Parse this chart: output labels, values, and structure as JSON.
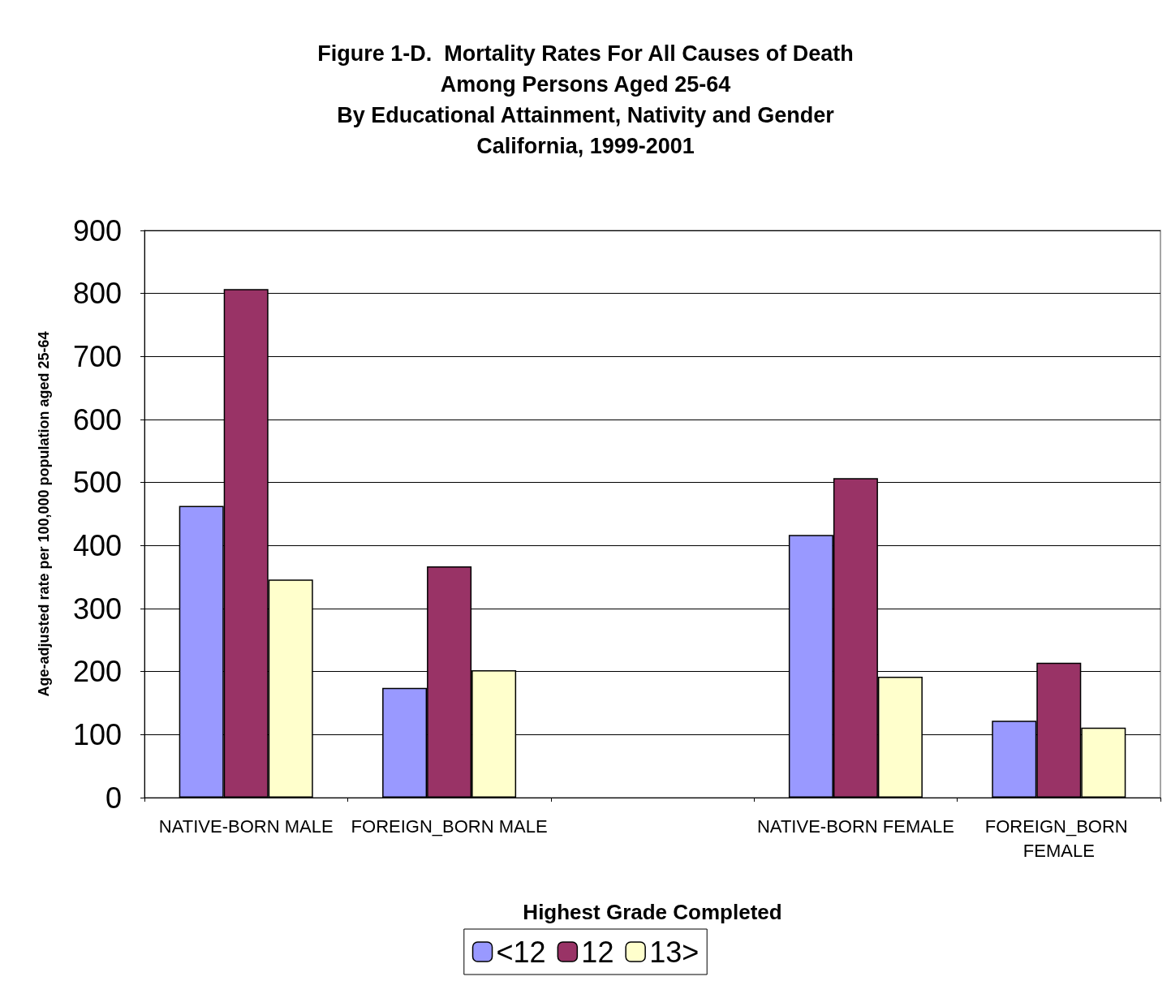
{
  "chart_data": {
    "type": "bar",
    "title": "Figure 1-D.  Mortality Rates For All Causes of Death\nAmong Persons Aged 25-64\nBy Educational Attainment, Nativity and Gender\nCalifornia, 1999-2001",
    "xlabel": "Highest Grade Completed",
    "ylabel": "Age-adjusted rate per 100,000 population aged 25-64",
    "categories": [
      "NATIVE-BORN MALE",
      "FOREIGN_BORN MALE",
      null,
      "NATIVE-BORN FEMALE",
      "FOREIGN_BORN FEMALE"
    ],
    "series": [
      {
        "name": "<12",
        "color": "#9999ff",
        "values": [
          463,
          174,
          null,
          417,
          122
        ]
      },
      {
        "name": "12",
        "color": "#993366",
        "values": [
          807,
          367,
          null,
          507,
          214
        ]
      },
      {
        "name": "13>",
        "color": "#ffffcc",
        "values": [
          346,
          202,
          null,
          192,
          111
        ]
      }
    ],
    "ylim": [
      0,
      900
    ],
    "yticks": [
      0,
      100,
      200,
      300,
      400,
      500,
      600,
      700,
      800,
      900
    ],
    "grid": "y",
    "legend": "bottom"
  }
}
